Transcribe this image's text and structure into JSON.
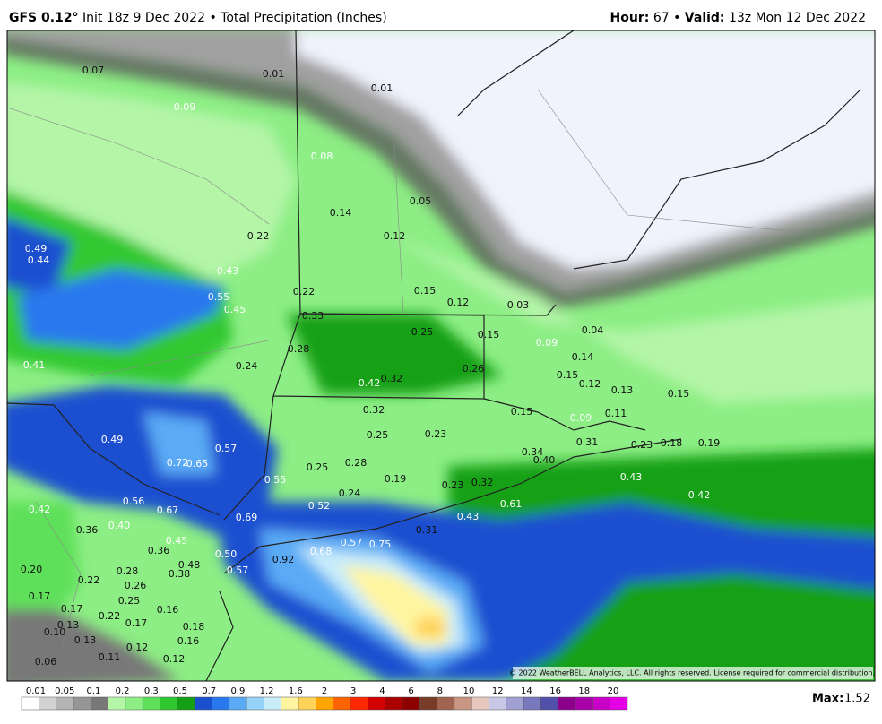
{
  "header": {
    "model": "GFS 0.12°",
    "run": "Init 18z 9 Dec 2022 • Total Precipitation (Inches)",
    "hour_label": "Hour:",
    "hour_text": "67 •",
    "valid_label": "Valid:",
    "valid_text": "13z Mon 12 Dec 2022"
  },
  "map": {
    "labels": [
      "0.07",
      "0.01",
      "0.01",
      "0.09",
      "0.08",
      "0.05",
      "0.14",
      "0.22",
      "0.12",
      "0.49",
      "0.44",
      "0.43",
      "0.55",
      "0.45",
      "0.22",
      "0.15",
      "0.12",
      "0.03",
      "0.33",
      "0.25",
      "0.15",
      "0.04",
      "0.09",
      "0.28",
      "0.14",
      "0.41",
      "0.24",
      "0.26",
      "0.15",
      "0.42",
      "0.32",
      "0.12",
      "0.13",
      "0.15",
      "0.32",
      "0.15",
      "0.09",
      "0.11",
      "0.49",
      "0.25",
      "0.23",
      "0.31",
      "0.23",
      "0.18",
      "0.19",
      "0.57",
      "0.72",
      "0.65",
      "0.25",
      "0.28",
      "0.34",
      "0.40",
      "0.19",
      "0.43",
      "0.55",
      "0.23",
      "0.32",
      "0.24",
      "0.56",
      "0.42",
      "0.67",
      "0.52",
      "0.61",
      "0.42",
      "0.43",
      "0.40",
      "0.36",
      "0.69",
      "0.31",
      "0.45",
      "0.57",
      "0.75",
      "0.36",
      "0.68",
      "0.50",
      "0.92",
      "0.48",
      "0.20",
      "0.28",
      "0.38",
      "0.57",
      "0.22",
      "0.26",
      "0.17",
      "0.25",
      "0.17",
      "0.16",
      "0.22",
      "0.17",
      "0.18",
      "0.13",
      "0.10",
      "0.13",
      "0.16",
      "0.12",
      "0.11",
      "0.12",
      "0.06"
    ],
    "copyright": "© 2022 WeatherBELL Analytics, LLC. All rights reserved. License required for commercial distribution."
  },
  "legend": {
    "labels": [
      "0.01",
      "0.05",
      "0.1",
      "0.2",
      "0.3",
      "0.5",
      "0.7",
      "0.9",
      "1.2",
      "1.6",
      "2",
      "3",
      "4",
      "6",
      "8",
      "10",
      "12",
      "14",
      "16",
      "18",
      "20"
    ],
    "colors": [
      "#ffffff",
      "#d2d2d2",
      "#b4b4b4",
      "#969696",
      "#787878",
      "#b4f5a8",
      "#8cee84",
      "#5ee05a",
      "#30c830",
      "#14a014",
      "#1a50d0",
      "#2a78ee",
      "#5aaaf5",
      "#96d2fa",
      "#c8ecfa",
      "#fff5a0",
      "#ffd25a",
      "#ffa500",
      "#ff6400",
      "#ff2800",
      "#d20000",
      "#aa0000",
      "#8c0000",
      "#783c28",
      "#a06450",
      "#c89682",
      "#e6c8be",
      "#c8c8e6",
      "#a0a0d2",
      "#7878be",
      "#5050aa",
      "#8c008c",
      "#aa00aa",
      "#c800c8",
      "#e600e6"
    ],
    "max_label": "Max:",
    "max_value": "1.52"
  }
}
